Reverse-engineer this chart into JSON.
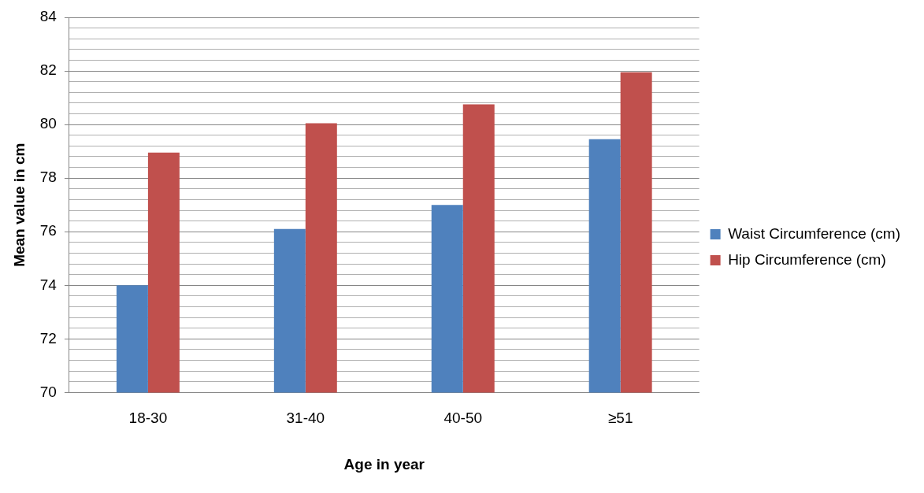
{
  "chart_data": {
    "type": "bar",
    "xlabel": "Age in year",
    "ylabel": "Mean value in cm",
    "categories": [
      "18-30",
      "31-40",
      "40-50",
      "≥51"
    ],
    "series": [
      {
        "name": "Waist Circumference (cm)",
        "color": "#4f81bd",
        "values": [
          74.0,
          76.1,
          77.0,
          79.45
        ]
      },
      {
        "name": "Hip Circumference (cm)",
        "color": "#c0504d",
        "values": [
          78.95,
          80.05,
          80.75,
          81.95
        ]
      }
    ],
    "ylim": [
      70,
      84
    ],
    "yticks": [
      70,
      {
        "value": 70.4,
        "label": null
      },
      {
        "value": 70.8,
        "label": null
      },
      {
        "value": 71.2,
        "label": null
      },
      {
        "value": 71.6,
        "label": null
      },
      72,
      {
        "value": 72.4,
        "label": null
      },
      {
        "value": 72.8,
        "label": null
      },
      {
        "value": 73.2,
        "label": null
      },
      {
        "value": 73.6,
        "label": null
      },
      74,
      {
        "value": 74.4,
        "label": null
      },
      {
        "value": 74.8,
        "label": null
      },
      {
        "value": 75.2,
        "label": null
      },
      {
        "value": 75.6,
        "label": null
      },
      76,
      {
        "value": 76.4,
        "label": null
      },
      {
        "value": 76.8,
        "label": null
      },
      {
        "value": 77.2,
        "label": null
      },
      {
        "value": 77.6,
        "label": null
      },
      78,
      {
        "value": 78.4,
        "label": null
      },
      {
        "value": 78.8,
        "label": null
      },
      {
        "value": 79.2,
        "label": null
      },
      {
        "value": 79.6,
        "label": null
      },
      80,
      {
        "value": 80.4,
        "label": null
      },
      {
        "value": 80.8,
        "label": null
      },
      {
        "value": 81.2,
        "label": null
      },
      {
        "value": 81.6,
        "label": null
      },
      82,
      {
        "value": 82.4,
        "label": null
      },
      {
        "value": 82.8,
        "label": null
      },
      {
        "value": 83.2,
        "label": null
      },
      {
        "value": 83.6,
        "label": null
      },
      84
    ],
    "grid": "y",
    "legend": "right"
  }
}
